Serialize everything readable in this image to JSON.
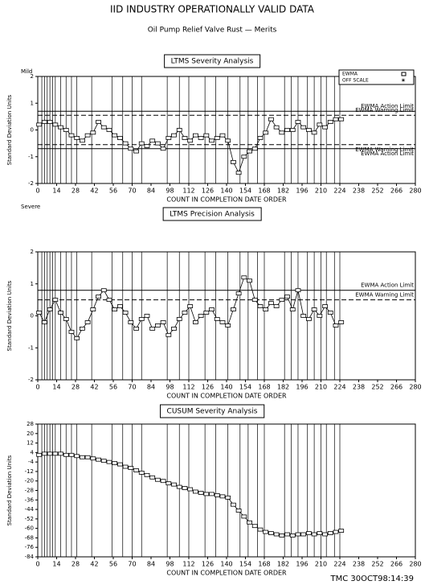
{
  "header": {
    "title": "IID    INDUSTRY OPERATIONALLY VALID DATA",
    "subtitle": "Oil Pump Relief Valve Rust — Merits"
  },
  "footer": "TMC  30OCT98:14:39",
  "chart_data": [
    {
      "type": "line",
      "marker": "square",
      "title": "LTMS Severity Analysis",
      "x_label": "COUNT IN COMPLETION DATE ORDER",
      "y_label": "Standard Deviation Units",
      "top_label": "Mild",
      "bottom_label": "Severe",
      "legend_entries": [
        "EWMA",
        "OFF SCALE"
      ],
      "legend": "upper right",
      "xlim": [
        0,
        280
      ],
      "xticks": [
        0,
        14,
        28,
        42,
        56,
        70,
        84,
        98,
        112,
        126,
        140,
        154,
        168,
        182,
        196,
        210,
        224,
        238,
        252,
        266,
        280
      ],
      "ylim": [
        -2,
        2
      ],
      "yticks": [
        -2,
        -1,
        0,
        1,
        2
      ],
      "reference_x": [
        3,
        5,
        7,
        9,
        11,
        13,
        17,
        21,
        25,
        29,
        40,
        55,
        63,
        70,
        77,
        96,
        105,
        112,
        124,
        132,
        141,
        150,
        156,
        163,
        168,
        183,
        188,
        193,
        200,
        205,
        210,
        214,
        220,
        224
      ],
      "limits": [
        {
          "label": "EWMA Action Limit",
          "value": 0.7,
          "style": "solid"
        },
        {
          "label": "EWMA Warning Limit",
          "value": 0.55,
          "style": "dashed"
        },
        {
          "label": "EWMA Warning Limit",
          "value": -0.55,
          "style": "dashed"
        },
        {
          "label": "EWMA Action Limit",
          "value": -0.7,
          "style": "solid"
        }
      ],
      "x": [
        1,
        5,
        9,
        13,
        17,
        21,
        25,
        29,
        33,
        37,
        41,
        45,
        49,
        53,
        57,
        61,
        65,
        69,
        73,
        77,
        81,
        85,
        89,
        93,
        97,
        101,
        105,
        109,
        113,
        117,
        121,
        125,
        129,
        133,
        137,
        141,
        145,
        149,
        153,
        157,
        161,
        165,
        169,
        173,
        177,
        181,
        185,
        189,
        193,
        197,
        201,
        205,
        209,
        213,
        217,
        221,
        225
      ],
      "values": [
        0.2,
        0.3,
        0.3,
        0.2,
        0.1,
        0,
        -0.2,
        -0.3,
        -0.4,
        -0.2,
        -0.1,
        0.3,
        0.1,
        0,
        -0.2,
        -0.3,
        -0.5,
        -0.7,
        -0.8,
        -0.5,
        -0.6,
        -0.4,
        -0.5,
        -0.7,
        -0.3,
        -0.2,
        0,
        -0.3,
        -0.4,
        -0.2,
        -0.3,
        -0.2,
        -0.4,
        -0.3,
        -0.2,
        -0.4,
        -1.2,
        -1.6,
        -1.0,
        -0.8,
        -0.7,
        -0.3,
        -0.1,
        0.4,
        0.1,
        -0.1,
        0,
        0,
        0.3,
        0.1,
        0,
        -0.1,
        0.2,
        0.1,
        0.3,
        0.4,
        0.4
      ]
    },
    {
      "type": "line",
      "marker": "square",
      "title": "LTMS Precision Analysis",
      "x_label": "COUNT IN COMPLETION DATE ORDER",
      "y_label": "Standard Deviation Units",
      "xlim": [
        0,
        280
      ],
      "xticks": [
        0,
        14,
        28,
        42,
        56,
        70,
        84,
        98,
        112,
        126,
        140,
        154,
        168,
        182,
        196,
        210,
        224,
        238,
        252,
        266,
        280
      ],
      "ylim": [
        -2,
        2
      ],
      "yticks": [
        -2,
        -1,
        0,
        1,
        2
      ],
      "reference_x": [
        3,
        5,
        7,
        9,
        11,
        13,
        17,
        21,
        25,
        29,
        40,
        55,
        63,
        70,
        77,
        96,
        105,
        112,
        124,
        132,
        141,
        150,
        156,
        163,
        168,
        183,
        188,
        193,
        200,
        205,
        210,
        214,
        220,
        224
      ],
      "limits": [
        {
          "label": "EWMA Action Limit",
          "value": 0.8,
          "style": "solid"
        },
        {
          "label": "EWMA Warning Limit",
          "value": 0.5,
          "style": "dashed"
        }
      ],
      "x": [
        1,
        5,
        9,
        13,
        17,
        21,
        25,
        29,
        33,
        37,
        41,
        45,
        49,
        53,
        57,
        61,
        65,
        69,
        73,
        77,
        81,
        85,
        89,
        93,
        97,
        101,
        105,
        109,
        113,
        117,
        121,
        125,
        129,
        133,
        137,
        141,
        145,
        149,
        153,
        157,
        161,
        165,
        169,
        173,
        177,
        181,
        185,
        189,
        193,
        197,
        201,
        205,
        209,
        213,
        217,
        221,
        225
      ],
      "values": [
        0.1,
        -0.2,
        0.2,
        0.5,
        0.1,
        -0.1,
        -0.5,
        -0.7,
        -0.4,
        -0.2,
        0.2,
        0.6,
        0.8,
        0.5,
        0.2,
        0.3,
        0.1,
        -0.2,
        -0.4,
        -0.1,
        0,
        -0.4,
        -0.3,
        -0.2,
        -0.6,
        -0.4,
        -0.1,
        0.1,
        0.3,
        -0.2,
        0,
        0.1,
        0.2,
        -0.1,
        -0.2,
        -0.3,
        0.2,
        0.7,
        1.2,
        1.1,
        0.5,
        0.3,
        0.2,
        0.4,
        0.3,
        0.5,
        0.6,
        0.2,
        0.8,
        0,
        -0.1,
        0.2,
        0,
        0.3,
        0.1,
        -0.3,
        -0.2
      ]
    },
    {
      "type": "line",
      "marker": "square",
      "title": "CUSUM Severity Analysis",
      "x_label": "COUNT IN COMPLETION DATE ORDER",
      "y_label": "Standard Deviation Units",
      "xlim": [
        0,
        280
      ],
      "xticks": [
        0,
        14,
        28,
        42,
        56,
        70,
        84,
        98,
        112,
        126,
        140,
        154,
        168,
        182,
        196,
        210,
        224,
        238,
        252,
        266,
        280
      ],
      "ylim": [
        -84,
        28
      ],
      "yticks": [
        -84,
        -76,
        -68,
        -60,
        -52,
        -44,
        -36,
        -28,
        -20,
        -12,
        -4,
        4,
        12,
        20,
        28
      ],
      "reference_x": [
        3,
        5,
        7,
        9,
        11,
        13,
        17,
        21,
        25,
        29,
        40,
        55,
        63,
        70,
        77,
        96,
        105,
        112,
        124,
        132,
        141,
        150,
        156,
        163,
        168,
        183,
        188,
        193,
        200,
        205,
        210,
        214,
        220,
        224
      ],
      "x": [
        1,
        5,
        9,
        13,
        17,
        21,
        25,
        29,
        33,
        37,
        41,
        45,
        49,
        53,
        57,
        61,
        65,
        69,
        73,
        77,
        81,
        85,
        89,
        93,
        97,
        101,
        105,
        109,
        113,
        117,
        121,
        125,
        129,
        133,
        137,
        141,
        145,
        149,
        153,
        157,
        161,
        165,
        169,
        173,
        177,
        181,
        185,
        189,
        193,
        197,
        201,
        205,
        209,
        213,
        217,
        221,
        225
      ],
      "values": [
        2,
        3,
        3,
        3,
        3,
        2,
        2,
        1,
        0,
        0,
        -1,
        -2,
        -3,
        -4,
        -5,
        -6,
        -8,
        -9,
        -11,
        -13,
        -15,
        -17,
        -19,
        -20,
        -22,
        -23,
        -25,
        -26,
        -27,
        -29,
        -30,
        -31,
        -31,
        -32,
        -33,
        -34,
        -40,
        -45,
        -50,
        -55,
        -58,
        -61,
        -63,
        -64,
        -65,
        -66,
        -65,
        -66,
        -65,
        -65,
        -64,
        -65,
        -64,
        -65,
        -64,
        -63,
        -62
      ]
    }
  ]
}
